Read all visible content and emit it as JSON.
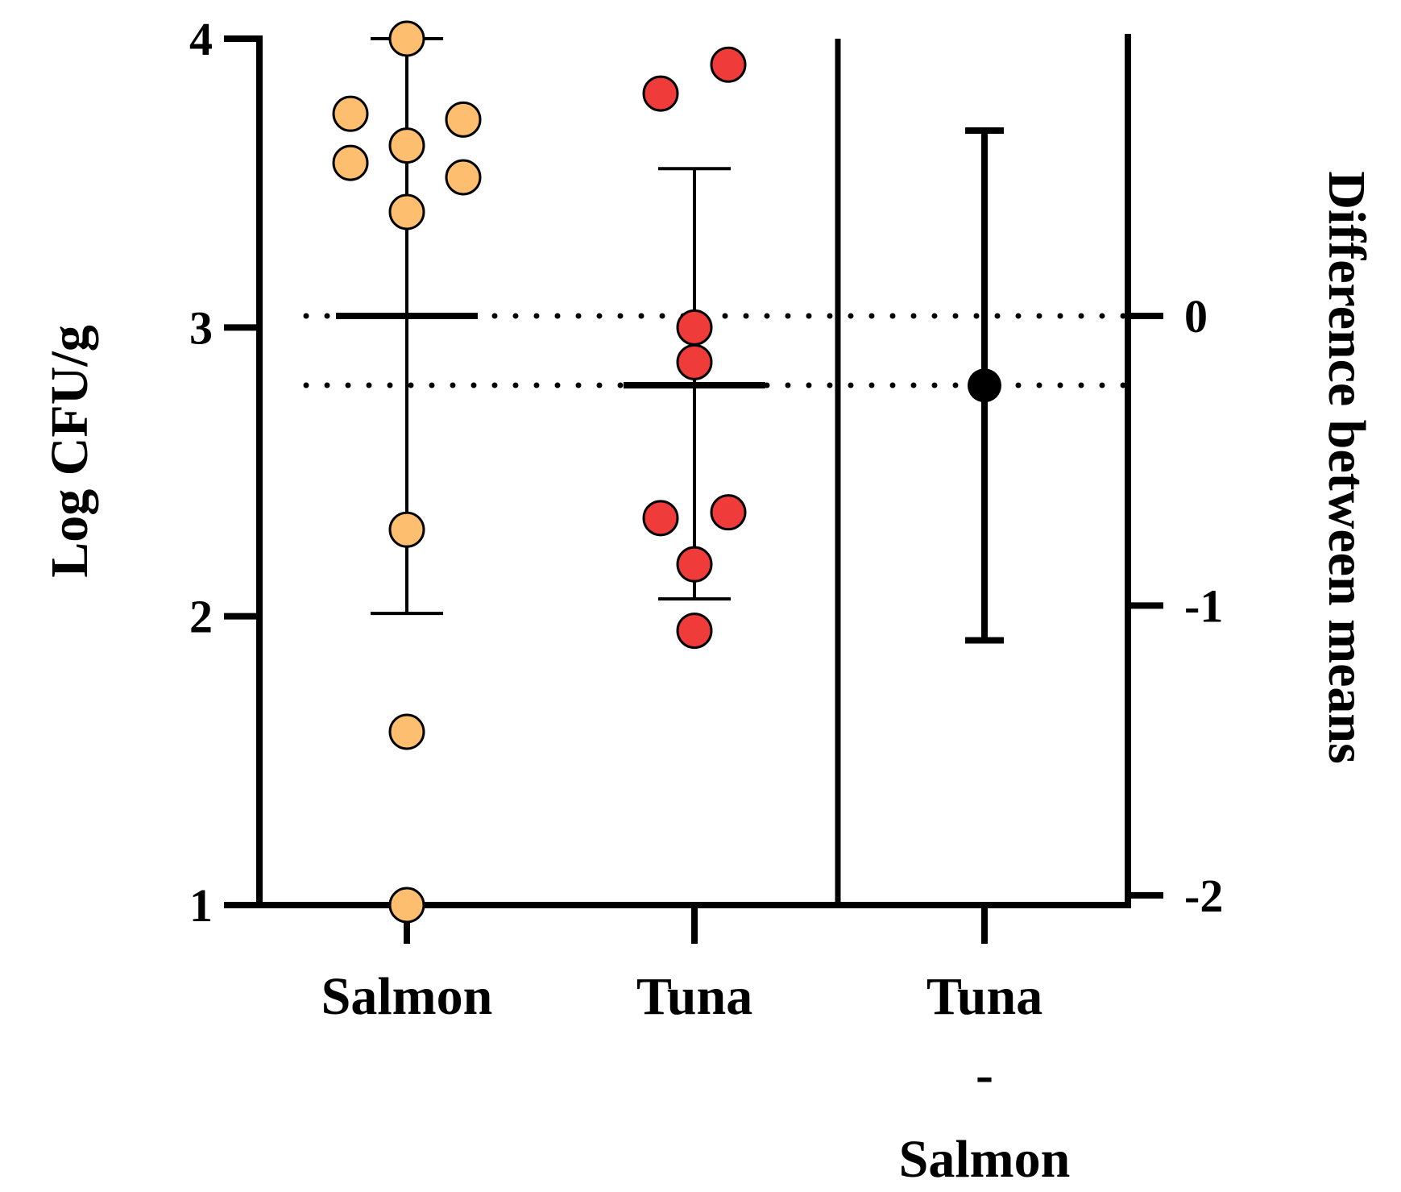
{
  "chart_data": {
    "type": "estimation-scatter",
    "ylabel": "Log CFU/g",
    "y2label": "Difference between means",
    "ylim": [
      1,
      4
    ],
    "y2lim": [
      -2,
      0
    ],
    "yticks": [
      "1",
      "2",
      "3",
      "4"
    ],
    "y2ticks": [
      "0",
      "-1",
      "-2"
    ],
    "categories": [
      "Salmon",
      "Tuna"
    ],
    "difference_label": [
      "Tuna",
      "-",
      "Salmon"
    ],
    "colors": {
      "Salmon": "#FDBF6F",
      "Tuna": "#F03B3B",
      "difference": "#000000"
    },
    "series": [
      {
        "name": "Salmon",
        "points": [
          4.0,
          3.74,
          3.72,
          3.63,
          3.57,
          3.52,
          3.4,
          2.3,
          1.6,
          1.0
        ],
        "mean": 3.04,
        "sd_low": 2.01,
        "sd_high": 4.0
      },
      {
        "name": "Tuna",
        "points": [
          3.91,
          3.81,
          3.0,
          2.88,
          2.36,
          2.34,
          2.18,
          1.95
        ],
        "mean": 2.8,
        "sd_low": 2.06,
        "sd_high": 3.55
      }
    ],
    "difference": {
      "mean": -0.24,
      "ci_low": -1.12,
      "ci_high": 0.64
    }
  }
}
